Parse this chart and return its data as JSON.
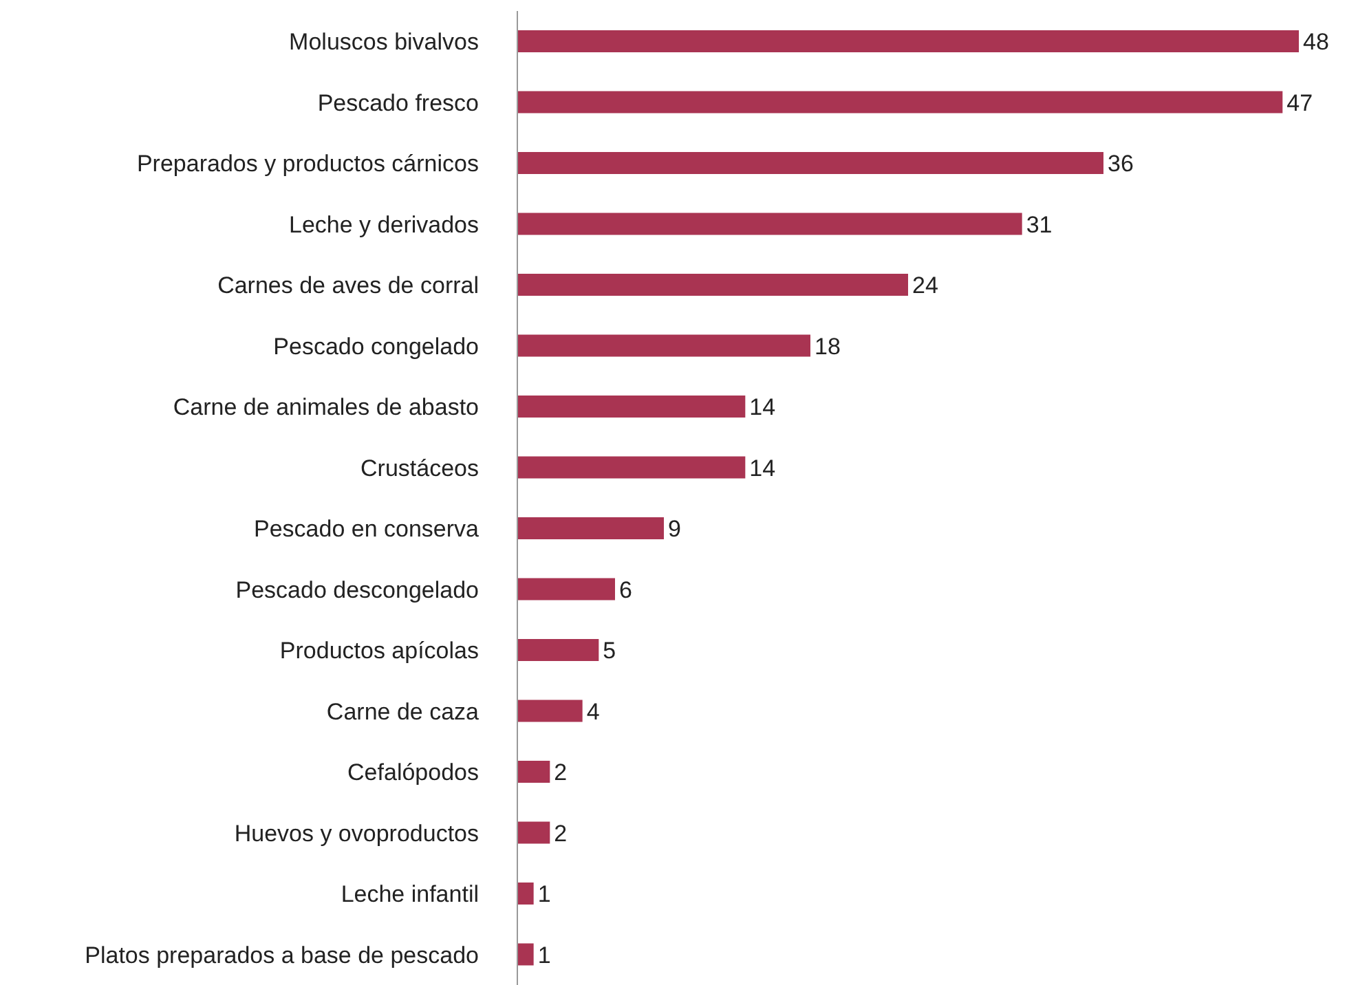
{
  "chart_data": {
    "type": "bar",
    "orientation": "horizontal",
    "categories": [
      "Moluscos bivalvos",
      "Pescado fresco",
      "Preparados y productos cárnicos",
      "Leche y derivados",
      "Carnes de aves de corral",
      "Pescado congelado",
      "Carne de animales de abasto",
      "Crustáceos",
      "Pescado en conserva",
      "Pescado descongelado",
      "Productos apícolas",
      "Carne de caza",
      "Cefalópodos",
      "Huevos y ovoproductos",
      "Leche infantil",
      "Platos preparados a base de pescado"
    ],
    "values": [
      48,
      47,
      36,
      31,
      24,
      18,
      14,
      14,
      9,
      6,
      5,
      4,
      2,
      2,
      1,
      1
    ],
    "color": "#a93452",
    "data_labels": true
  }
}
